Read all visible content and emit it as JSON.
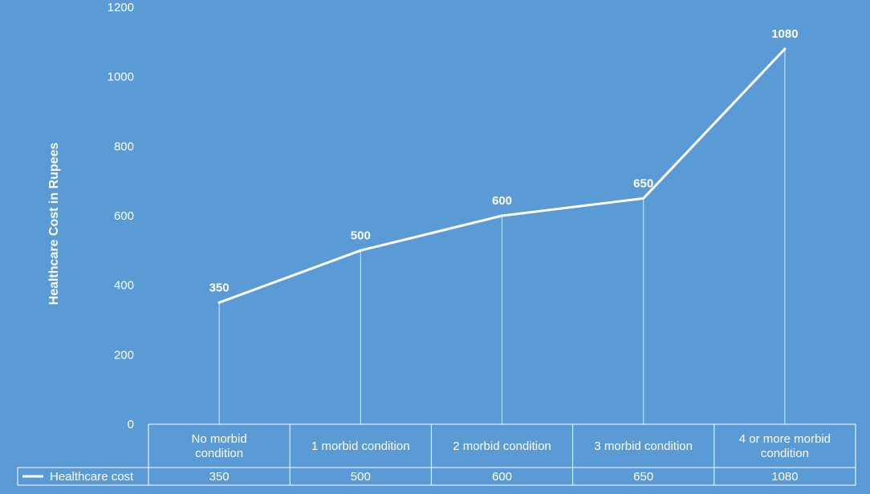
{
  "chart_data": {
    "type": "line",
    "title": "",
    "xlabel": "",
    "ylabel": "Healthcare Cost in Rupees",
    "ylim": [
      0,
      1200
    ],
    "yticks": [
      0,
      200,
      400,
      600,
      800,
      1000,
      1200
    ],
    "categories": [
      [
        "No morbid",
        "condition"
      ],
      [
        "1 morbid condition"
      ],
      [
        "2 morbid condition"
      ],
      [
        "3 morbid condition"
      ],
      [
        "4 or more morbid",
        "condition"
      ]
    ],
    "series": [
      {
        "name": "Healthcare cost",
        "values": [
          350,
          500,
          600,
          650,
          1080
        ]
      }
    ],
    "data_table": true,
    "drop_lines": true,
    "grid": false,
    "line_color": "#ffffff",
    "background_color": "#5b9bd5"
  }
}
